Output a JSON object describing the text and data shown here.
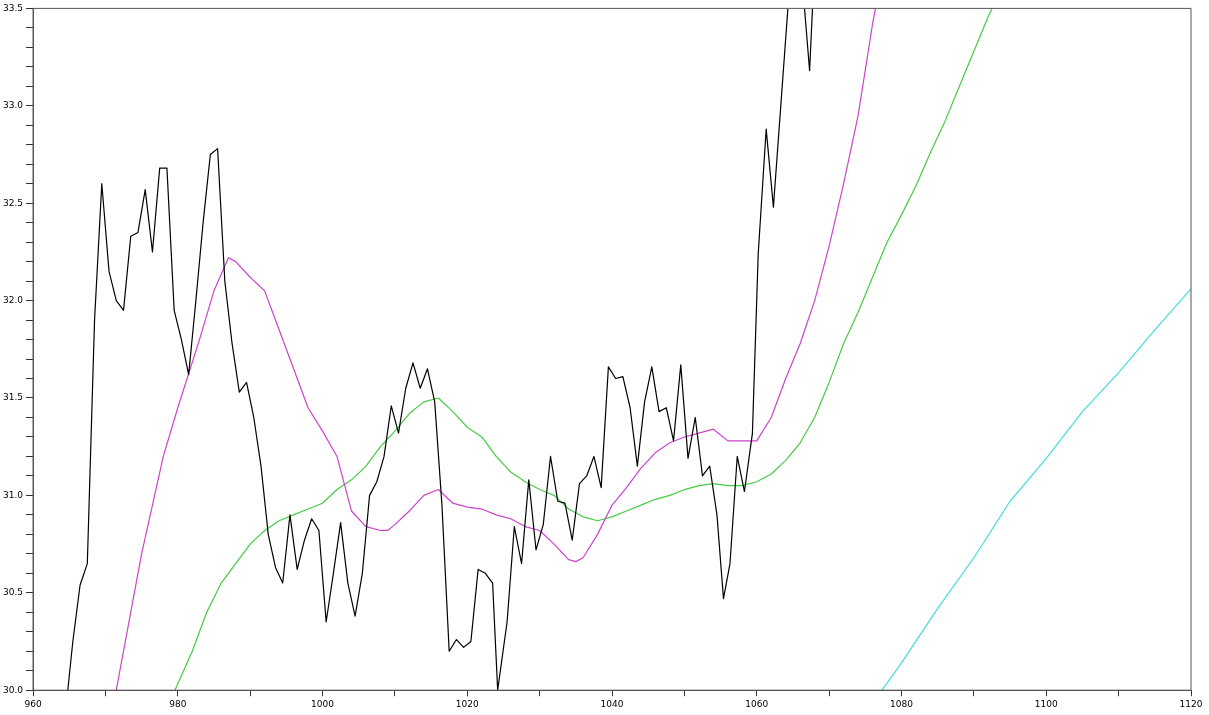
{
  "chart_data": {
    "type": "line",
    "xlim": [
      960,
      1120
    ],
    "ylim": [
      30,
      33.5
    ],
    "xticks": [
      960,
      {
        "value": 970,
        "label": null
      },
      980,
      {
        "value": 990,
        "label": null
      },
      1000,
      {
        "value": 1010,
        "label": null
      },
      1020,
      {
        "value": 1030,
        "label": null
      },
      1040,
      {
        "value": 1050,
        "label": null
      },
      1060,
      {
        "value": 1070,
        "label": null
      },
      1080,
      {
        "value": 1090,
        "label": null
      },
      1100,
      {
        "value": 1110,
        "label": null
      },
      1120
    ],
    "yticks": [
      {
        "value": 30.0,
        "label": "30.0"
      },
      {
        "value": 30.1,
        "label": null
      },
      {
        "value": 30.2,
        "label": null
      },
      {
        "value": 30.3,
        "label": null
      },
      {
        "value": 30.4,
        "label": null
      },
      {
        "value": 30.5,
        "label": "30.5"
      },
      {
        "value": 30.6,
        "label": null
      },
      {
        "value": 30.7,
        "label": null
      },
      {
        "value": 30.8,
        "label": null
      },
      {
        "value": 30.9,
        "label": null
      },
      {
        "value": 31.0,
        "label": "31.0"
      },
      {
        "value": 31.1,
        "label": null
      },
      {
        "value": 31.2,
        "label": null
      },
      {
        "value": 31.3,
        "label": null
      },
      {
        "value": 31.4,
        "label": null
      },
      {
        "value": 31.5,
        "label": "31.5"
      },
      {
        "value": 31.6,
        "label": null
      },
      {
        "value": 31.7,
        "label": null
      },
      {
        "value": 31.8,
        "label": null
      },
      {
        "value": 31.9,
        "label": null
      },
      {
        "value": 32.0,
        "label": "32.0"
      },
      {
        "value": 32.1,
        "label": null
      },
      {
        "value": 32.2,
        "label": null
      },
      {
        "value": 32.3,
        "label": null
      },
      {
        "value": 32.4,
        "label": null
      },
      {
        "value": 32.5,
        "label": "32.5"
      },
      {
        "value": 32.6,
        "label": null
      },
      {
        "value": 32.7,
        "label": null
      },
      {
        "value": 32.8,
        "label": null
      },
      {
        "value": 32.9,
        "label": null
      },
      {
        "value": 33.0,
        "label": "33.0"
      },
      {
        "value": 33.1,
        "label": null
      },
      {
        "value": 33.2,
        "label": null
      },
      {
        "value": 33.3,
        "label": null
      },
      {
        "value": 33.4,
        "label": null
      },
      {
        "value": 33.5,
        "label": "33.5"
      }
    ],
    "grid": false,
    "legend": false,
    "line_style": "solid",
    "series": [
      {
        "color": "#000000",
        "x": [
          964.8,
          965.5,
          966.5,
          967.5,
          968.5,
          969.5,
          970.5,
          971.5,
          972.5,
          973.5,
          974.5,
          975.5,
          976.5,
          977.5,
          978.5,
          979.5,
          980.5,
          981.5,
          982.5,
          983.5,
          984.5,
          985.5,
          986.5,
          987.5,
          988.5,
          989.5,
          990.5,
          991.5,
          992.5,
          993.5,
          994.5,
          995.5,
          996.5,
          997.5,
          998.5,
          999.5,
          1000.5,
          1001.5,
          1002.5,
          1003.5,
          1004.5,
          1005.5,
          1006.5,
          1007.5,
          1008.5,
          1009.5,
          1010.5,
          1011.5,
          1012.5,
          1013.5,
          1014.5,
          1015.5,
          1016.5,
          1017.5,
          1018.5,
          1019.5,
          1020.5,
          1021.5,
          1022.5,
          1023.5,
          1024.2,
          1025.5,
          1026.5,
          1027.5,
          1028.5,
          1029.5,
          1030.5,
          1031.5,
          1032.5,
          1033.5,
          1034.5,
          1035.5,
          1036.5,
          1037.5,
          1038.5,
          1039.5,
          1040.5,
          1041.5,
          1042.5,
          1043.5,
          1044.5,
          1045.5,
          1046.5,
          1047.5,
          1048.5,
          1049.5,
          1050.5,
          1051.5,
          1052.5,
          1053.5,
          1054.5,
          1055.4,
          1056.3,
          1057.3,
          1058.3,
          1059.4,
          1060.2,
          1061.3,
          1062.3,
          1064.3,
          1065.5,
          1066.6,
          1067.3,
          1067.7
        ],
        "values": [
          30.0,
          30.25,
          30.54,
          30.65,
          31.9,
          32.6,
          32.15,
          32.0,
          31.95,
          32.33,
          32.35,
          32.57,
          32.25,
          32.68,
          32.68,
          31.95,
          31.8,
          31.62,
          32.0,
          32.4,
          32.75,
          32.78,
          32.1,
          31.78,
          31.53,
          31.58,
          31.4,
          31.15,
          30.8,
          30.63,
          30.55,
          30.9,
          30.62,
          30.77,
          30.88,
          30.82,
          30.35,
          30.6,
          30.86,
          30.55,
          30.38,
          30.6,
          31.0,
          31.07,
          31.2,
          31.46,
          31.32,
          31.55,
          31.68,
          31.55,
          31.65,
          31.48,
          30.95,
          30.2,
          30.26,
          30.22,
          30.25,
          30.62,
          30.6,
          30.55,
          30.0,
          30.35,
          30.84,
          30.65,
          31.08,
          30.72,
          30.85,
          31.2,
          30.97,
          30.96,
          30.77,
          31.06,
          31.1,
          31.2,
          31.04,
          31.66,
          31.6,
          31.61,
          31.45,
          31.15,
          31.48,
          31.66,
          31.43,
          31.45,
          31.28,
          31.67,
          31.19,
          31.4,
          31.1,
          31.15,
          30.9,
          30.47,
          30.65,
          31.2,
          31.02,
          31.32,
          32.24,
          32.88,
          32.48,
          33.5,
          null,
          33.5,
          33.18,
          33.5
        ]
      },
      {
        "color": "#cc44cc",
        "x": [
          971.5,
          975,
          978,
          980,
          983,
          985,
          987,
          988,
          990,
          992,
          994,
          996,
          998,
          1000,
          1002,
          1004,
          1006,
          1008,
          1009,
          1010,
          1012,
          1014,
          1016,
          1018,
          1020,
          1022,
          1024,
          1026,
          1028,
          1030,
          1032,
          1034,
          1035,
          1036,
          1038,
          1040,
          1042,
          1044,
          1046,
          1048,
          1050,
          1052,
          1054,
          1056,
          1058,
          1060,
          1062,
          1064,
          1066,
          1068,
          1070,
          1072,
          1074,
          1076,
          1076.4
        ],
        "values": [
          30.0,
          30.7,
          31.2,
          31.45,
          31.8,
          32.05,
          32.22,
          32.2,
          32.12,
          32.05,
          31.85,
          31.65,
          31.45,
          31.33,
          31.2,
          30.92,
          30.84,
          30.82,
          30.82,
          30.85,
          30.92,
          31.0,
          31.03,
          30.96,
          30.94,
          30.93,
          30.9,
          30.88,
          30.84,
          30.82,
          30.75,
          30.67,
          30.66,
          30.68,
          30.8,
          30.95,
          31.04,
          31.14,
          31.22,
          31.27,
          31.3,
          31.32,
          31.34,
          31.28,
          31.28,
          31.28,
          31.4,
          31.6,
          31.78,
          32.0,
          32.28,
          32.6,
          32.95,
          33.42,
          33.5
        ]
      },
      {
        "color": "#44cc44",
        "x": [
          979.6,
          982,
          984,
          986,
          988,
          990,
          992,
          994,
          996,
          998,
          1000,
          1002,
          1004,
          1006,
          1008,
          1010,
          1012,
          1014,
          1016,
          1018,
          1020,
          1022,
          1024,
          1026,
          1028,
          1030,
          1032,
          1034,
          1036,
          1038,
          1040,
          1042,
          1044,
          1046,
          1048,
          1050,
          1052,
          1054,
          1056,
          1058,
          1060,
          1062,
          1064,
          1066,
          1068,
          1070,
          1072,
          1074,
          1076,
          1078,
          1080,
          1082,
          1084,
          1086,
          1088,
          1090,
          1092,
          1092.5
        ],
        "values": [
          30.0,
          30.2,
          30.4,
          30.55,
          30.65,
          30.75,
          30.82,
          30.87,
          30.9,
          30.93,
          30.96,
          31.03,
          31.08,
          31.15,
          31.25,
          31.33,
          31.42,
          31.48,
          31.5,
          31.43,
          31.35,
          31.3,
          31.2,
          31.12,
          31.07,
          31.03,
          31.0,
          30.93,
          30.89,
          30.87,
          30.89,
          30.92,
          30.95,
          30.98,
          31.0,
          31.03,
          31.05,
          31.06,
          31.05,
          31.05,
          31.07,
          31.11,
          31.18,
          31.27,
          31.4,
          31.58,
          31.78,
          31.94,
          32.12,
          32.3,
          32.44,
          32.59,
          32.76,
          32.92,
          33.1,
          33.28,
          33.46,
          33.5
        ]
      },
      {
        "color": "#44dddd",
        "x": [
          1077.3,
          1080,
          1085,
          1090,
          1095,
          1100,
          1105,
          1110,
          1115,
          1120
        ],
        "values": [
          30.0,
          30.14,
          30.42,
          30.68,
          30.97,
          31.19,
          31.43,
          31.63,
          31.85,
          32.06
        ]
      }
    ]
  }
}
